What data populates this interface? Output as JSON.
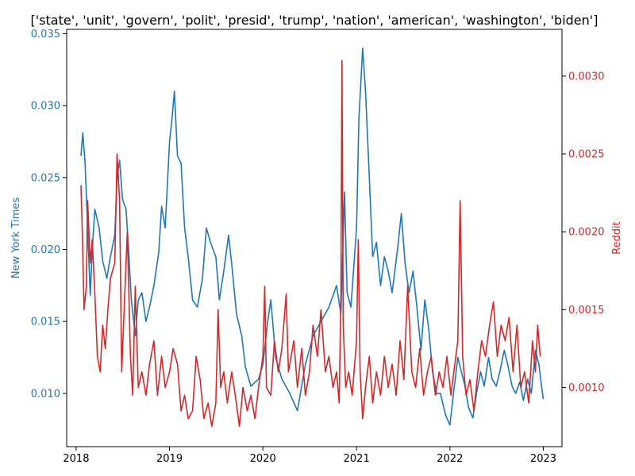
{
  "chart_data": {
    "type": "line",
    "title": "['state', 'unit', 'govern', 'polit', 'presid', 'trump', 'nation', 'american', 'washington', 'biden']",
    "xlabel": "",
    "x_ticks": [
      "2018",
      "2019",
      "2020",
      "2021",
      "2022",
      "2023"
    ],
    "xlim": [
      "2017-11-25",
      "2023-03-15"
    ],
    "left_axis": {
      "label": "New York Times",
      "color": "#1f77b4",
      "ylim": [
        0.0063,
        0.0353
      ],
      "ticks": [
        0.01,
        0.015,
        0.02,
        0.025,
        0.03,
        0.035
      ],
      "tick_labels": [
        "0.010",
        "0.015",
        "0.020",
        "0.025",
        "0.030",
        "0.035"
      ]
    },
    "right_axis": {
      "label": "Reddit",
      "color": "#d62728",
      "ylim": [
        0.00062,
        0.0033
      ],
      "ticks": [
        0.001,
        0.0015,
        0.002,
        0.0025,
        0.003
      ],
      "tick_labels": [
        "0.0010",
        "0.0015",
        "0.0020",
        "0.0025",
        "0.0030"
      ]
    },
    "grid": false,
    "legend": "none",
    "series": [
      {
        "name": "New York Times",
        "axis": "left",
        "color": "#1f77b4",
        "points": [
          [
            "2018-01-20",
            0.0265
          ],
          [
            "2018-01-27",
            0.0281
          ],
          [
            "2018-02-05",
            0.026
          ],
          [
            "2018-02-15",
            0.0215
          ],
          [
            "2018-02-25",
            0.0168
          ],
          [
            "2018-03-05",
            0.02
          ],
          [
            "2018-03-15",
            0.0228
          ],
          [
            "2018-04-01",
            0.0215
          ],
          [
            "2018-04-15",
            0.0192
          ],
          [
            "2018-05-01",
            0.018
          ],
          [
            "2018-05-15",
            0.0195
          ],
          [
            "2018-06-01",
            0.021
          ],
          [
            "2018-06-10",
            0.025
          ],
          [
            "2018-06-20",
            0.0262
          ],
          [
            "2018-07-01",
            0.0235
          ],
          [
            "2018-07-15",
            0.0228
          ],
          [
            "2018-07-25",
            0.02
          ],
          [
            "2018-08-05",
            0.0165
          ],
          [
            "2018-08-20",
            0.014
          ],
          [
            "2018-09-01",
            0.0165
          ],
          [
            "2018-09-15",
            0.017
          ],
          [
            "2018-10-01",
            0.015
          ],
          [
            "2018-10-15",
            0.016
          ],
          [
            "2018-11-01",
            0.0175
          ],
          [
            "2018-11-20",
            0.0198
          ],
          [
            "2018-12-01",
            0.023
          ],
          [
            "2018-12-15",
            0.0215
          ],
          [
            "2019-01-01",
            0.0275
          ],
          [
            "2019-01-10",
            0.029
          ],
          [
            "2019-01-20",
            0.031
          ],
          [
            "2019-02-01",
            0.0265
          ],
          [
            "2019-02-15",
            0.026
          ],
          [
            "2019-03-01",
            0.0215
          ],
          [
            "2019-03-15",
            0.0195
          ],
          [
            "2019-04-01",
            0.0165
          ],
          [
            "2019-04-20",
            0.016
          ],
          [
            "2019-05-10",
            0.018
          ],
          [
            "2019-05-25",
            0.0215
          ],
          [
            "2019-06-10",
            0.0205
          ],
          [
            "2019-07-01",
            0.0195
          ],
          [
            "2019-07-15",
            0.0165
          ],
          [
            "2019-08-01",
            0.0185
          ],
          [
            "2019-08-20",
            0.021
          ],
          [
            "2019-09-01",
            0.019
          ],
          [
            "2019-09-20",
            0.0155
          ],
          [
            "2019-10-10",
            0.014
          ],
          [
            "2019-10-25",
            0.0118
          ],
          [
            "2019-11-15",
            0.0105
          ],
          [
            "2019-12-15",
            0.011
          ],
          [
            "2020-01-01",
            0.012
          ],
          [
            "2020-01-20",
            0.015
          ],
          [
            "2020-02-01",
            0.0165
          ],
          [
            "2020-02-20",
            0.0125
          ],
          [
            "2020-03-15",
            0.011
          ],
          [
            "2020-04-15",
            0.01
          ],
          [
            "2020-05-15",
            0.0088
          ],
          [
            "2020-06-15",
            0.012
          ],
          [
            "2020-07-15",
            0.014
          ],
          [
            "2020-08-15",
            0.015
          ],
          [
            "2020-09-15",
            0.016
          ],
          [
            "2020-10-15",
            0.0175
          ],
          [
            "2020-11-01",
            0.0155
          ],
          [
            "2020-11-15",
            0.024
          ],
          [
            "2020-11-25",
            0.017
          ],
          [
            "2020-12-10",
            0.016
          ],
          [
            "2021-01-01",
            0.0215
          ],
          [
            "2021-01-10",
            0.029
          ],
          [
            "2021-01-25",
            0.034
          ],
          [
            "2021-02-05",
            0.031
          ],
          [
            "2021-02-20",
            0.025
          ],
          [
            "2021-03-05",
            0.0195
          ],
          [
            "2021-03-20",
            0.0205
          ],
          [
            "2021-04-05",
            0.0175
          ],
          [
            "2021-04-20",
            0.0195
          ],
          [
            "2021-05-05",
            0.0185
          ],
          [
            "2021-05-20",
            0.017
          ],
          [
            "2021-06-10",
            0.02
          ],
          [
            "2021-06-25",
            0.0225
          ],
          [
            "2021-07-10",
            0.019
          ],
          [
            "2021-07-25",
            0.017
          ],
          [
            "2021-08-10",
            0.0185
          ],
          [
            "2021-08-25",
            0.016
          ],
          [
            "2021-09-10",
            0.013
          ],
          [
            "2021-09-25",
            0.0165
          ],
          [
            "2021-10-10",
            0.0145
          ],
          [
            "2021-10-25",
            0.0115
          ],
          [
            "2021-11-10",
            0.01
          ],
          [
            "2021-11-25",
            0.01
          ],
          [
            "2021-12-15",
            0.0085
          ],
          [
            "2022-01-01",
            0.0078
          ],
          [
            "2022-01-15",
            0.01
          ],
          [
            "2022-02-01",
            0.0125
          ],
          [
            "2022-02-15",
            0.0115
          ],
          [
            "2022-03-01",
            0.0105
          ],
          [
            "2022-03-15",
            0.009
          ],
          [
            "2022-04-01",
            0.0083
          ],
          [
            "2022-04-15",
            0.01
          ],
          [
            "2022-05-01",
            0.0115
          ],
          [
            "2022-05-15",
            0.0105
          ],
          [
            "2022-06-01",
            0.0125
          ],
          [
            "2022-06-15",
            0.011
          ],
          [
            "2022-07-01",
            0.0105
          ],
          [
            "2022-07-15",
            0.0115
          ],
          [
            "2022-08-01",
            0.013
          ],
          [
            "2022-08-15",
            0.012
          ],
          [
            "2022-09-01",
            0.0105
          ],
          [
            "2022-09-15",
            0.01
          ],
          [
            "2022-10-01",
            0.0108
          ],
          [
            "2022-10-15",
            0.0095
          ],
          [
            "2022-11-01",
            0.011
          ],
          [
            "2022-11-15",
            0.01
          ],
          [
            "2022-12-01",
            0.013
          ],
          [
            "2022-12-15",
            0.012
          ],
          [
            "2022-12-25",
            0.0105
          ],
          [
            "2023-01-01",
            0.0096
          ]
        ]
      },
      {
        "name": "Reddit",
        "axis": "right",
        "color": "#d62728",
        "points": [
          [
            "2018-01-20",
            0.0023
          ],
          [
            "2018-01-25",
            0.002
          ],
          [
            "2018-02-01",
            0.0015
          ],
          [
            "2018-02-10",
            0.00165
          ],
          [
            "2018-02-15",
            0.0022
          ],
          [
            "2018-02-25",
            0.0018
          ],
          [
            "2018-03-05",
            0.00195
          ],
          [
            "2018-03-15",
            0.0016
          ],
          [
            "2018-03-25",
            0.0012
          ],
          [
            "2018-04-05",
            0.0011
          ],
          [
            "2018-04-15",
            0.0014
          ],
          [
            "2018-04-25",
            0.00125
          ],
          [
            "2018-05-05",
            0.0015
          ],
          [
            "2018-05-15",
            0.0017
          ],
          [
            "2018-06-01",
            0.0018
          ],
          [
            "2018-06-10",
            0.0025
          ],
          [
            "2018-06-20",
            0.0022
          ],
          [
            "2018-06-28",
            0.0011
          ],
          [
            "2018-07-10",
            0.0016
          ],
          [
            "2018-07-20",
            0.002
          ],
          [
            "2018-08-01",
            0.0012
          ],
          [
            "2018-08-10",
            0.00095
          ],
          [
            "2018-08-20",
            0.00165
          ],
          [
            "2018-09-01",
            0.001
          ],
          [
            "2018-09-15",
            0.0011
          ],
          [
            "2018-10-01",
            0.00095
          ],
          [
            "2018-10-15",
            0.00115
          ],
          [
            "2018-11-01",
            0.0013
          ],
          [
            "2018-11-15",
            0.00095
          ],
          [
            "2018-12-01",
            0.0012
          ],
          [
            "2018-12-15",
            0.001
          ],
          [
            "2019-01-01",
            0.0011
          ],
          [
            "2019-01-15",
            0.00125
          ],
          [
            "2019-02-01",
            0.00115
          ],
          [
            "2019-02-15",
            0.00085
          ],
          [
            "2019-03-01",
            0.00095
          ],
          [
            "2019-03-15",
            0.0008
          ],
          [
            "2019-04-01",
            0.00085
          ],
          [
            "2019-04-15",
            0.0012
          ],
          [
            "2019-05-01",
            0.00105
          ],
          [
            "2019-05-15",
            0.0008
          ],
          [
            "2019-06-01",
            0.0009
          ],
          [
            "2019-06-15",
            0.00075
          ],
          [
            "2019-07-01",
            0.0009
          ],
          [
            "2019-07-10",
            0.0015
          ],
          [
            "2019-07-20",
            0.001
          ],
          [
            "2019-08-01",
            0.0011
          ],
          [
            "2019-08-15",
            0.0009
          ],
          [
            "2019-09-01",
            0.0011
          ],
          [
            "2019-09-15",
            0.00095
          ],
          [
            "2019-10-01",
            0.00075
          ],
          [
            "2019-10-15",
            0.001
          ],
          [
            "2019-11-01",
            0.00085
          ],
          [
            "2019-11-15",
            0.00095
          ],
          [
            "2019-12-01",
            0.0008
          ],
          [
            "2019-12-15",
            0.001
          ],
          [
            "2020-01-01",
            0.0012
          ],
          [
            "2020-01-08",
            0.00165
          ],
          [
            "2020-01-15",
            0.001
          ],
          [
            "2020-02-01",
            0.00095
          ],
          [
            "2020-02-15",
            0.0013
          ],
          [
            "2020-03-01",
            0.0011
          ],
          [
            "2020-03-15",
            0.00125
          ],
          [
            "2020-04-01",
            0.0016
          ],
          [
            "2020-04-10",
            0.0011
          ],
          [
            "2020-05-01",
            0.0013
          ],
          [
            "2020-05-15",
            0.001
          ],
          [
            "2020-06-01",
            0.00125
          ],
          [
            "2020-06-15",
            0.00095
          ],
          [
            "2020-07-01",
            0.0011
          ],
          [
            "2020-07-15",
            0.0014
          ],
          [
            "2020-08-01",
            0.0012
          ],
          [
            "2020-08-15",
            0.0015
          ],
          [
            "2020-09-01",
            0.0011
          ],
          [
            "2020-09-15",
            0.0012
          ],
          [
            "2020-10-01",
            0.001
          ],
          [
            "2020-10-15",
            0.0011
          ],
          [
            "2020-10-25",
            0.0009
          ],
          [
            "2020-11-01",
            0.0016
          ],
          [
            "2020-11-05",
            0.0031
          ],
          [
            "2020-11-10",
            0.0014
          ],
          [
            "2020-11-20",
            0.001
          ],
          [
            "2020-12-01",
            0.0011
          ],
          [
            "2020-12-15",
            0.00095
          ],
          [
            "2021-01-01",
            0.0013
          ],
          [
            "2021-01-08",
            0.00195
          ],
          [
            "2021-01-15",
            0.0011
          ],
          [
            "2021-01-25",
            0.0008
          ],
          [
            "2021-02-05",
            0.001
          ],
          [
            "2021-02-20",
            0.0012
          ],
          [
            "2021-03-05",
            0.0009
          ],
          [
            "2021-03-20",
            0.0011
          ],
          [
            "2021-04-05",
            0.00095
          ],
          [
            "2021-04-20",
            0.0012
          ],
          [
            "2021-05-05",
            0.001
          ],
          [
            "2021-05-20",
            0.00115
          ],
          [
            "2021-06-05",
            0.00095
          ],
          [
            "2021-06-20",
            0.0013
          ],
          [
            "2021-07-05",
            0.00105
          ],
          [
            "2021-07-20",
            0.00165
          ],
          [
            "2021-08-05",
            0.0011
          ],
          [
            "2021-08-20",
            0.001
          ],
          [
            "2021-09-05",
            0.00125
          ],
          [
            "2021-09-20",
            0.00095
          ],
          [
            "2021-10-05",
            0.0011
          ],
          [
            "2021-10-20",
            0.0012
          ],
          [
            "2021-11-05",
            0.00095
          ],
          [
            "2021-11-20",
            0.0011
          ],
          [
            "2021-12-05",
            0.001
          ],
          [
            "2021-12-20",
            0.0012
          ],
          [
            "2022-01-05",
            0.00095
          ],
          [
            "2022-01-20",
            0.00115
          ],
          [
            "2022-02-01",
            0.0013
          ],
          [
            "2022-02-10",
            0.0022
          ],
          [
            "2022-02-20",
            0.0012
          ],
          [
            "2022-03-05",
            0.00095
          ],
          [
            "2022-03-20",
            0.00105
          ],
          [
            "2022-04-05",
            0.00085
          ],
          [
            "2022-04-20",
            0.0011
          ],
          [
            "2022-05-05",
            0.0013
          ],
          [
            "2022-05-20",
            0.0012
          ],
          [
            "2022-06-05",
            0.0014
          ],
          [
            "2022-06-20",
            0.00155
          ],
          [
            "2022-07-05",
            0.0012
          ],
          [
            "2022-07-20",
            0.0014
          ],
          [
            "2022-08-05",
            0.0013
          ],
          [
            "2022-08-20",
            0.00145
          ],
          [
            "2022-09-05",
            0.0011
          ],
          [
            "2022-09-20",
            0.0014
          ],
          [
            "2022-10-05",
            0.001
          ],
          [
            "2022-10-20",
            0.0011
          ],
          [
            "2022-11-05",
            0.0009
          ],
          [
            "2022-11-20",
            0.0013
          ],
          [
            "2022-12-01",
            0.0011
          ],
          [
            "2022-12-10",
            0.0014
          ],
          [
            "2022-12-20",
            0.0012
          ]
        ]
      }
    ]
  }
}
